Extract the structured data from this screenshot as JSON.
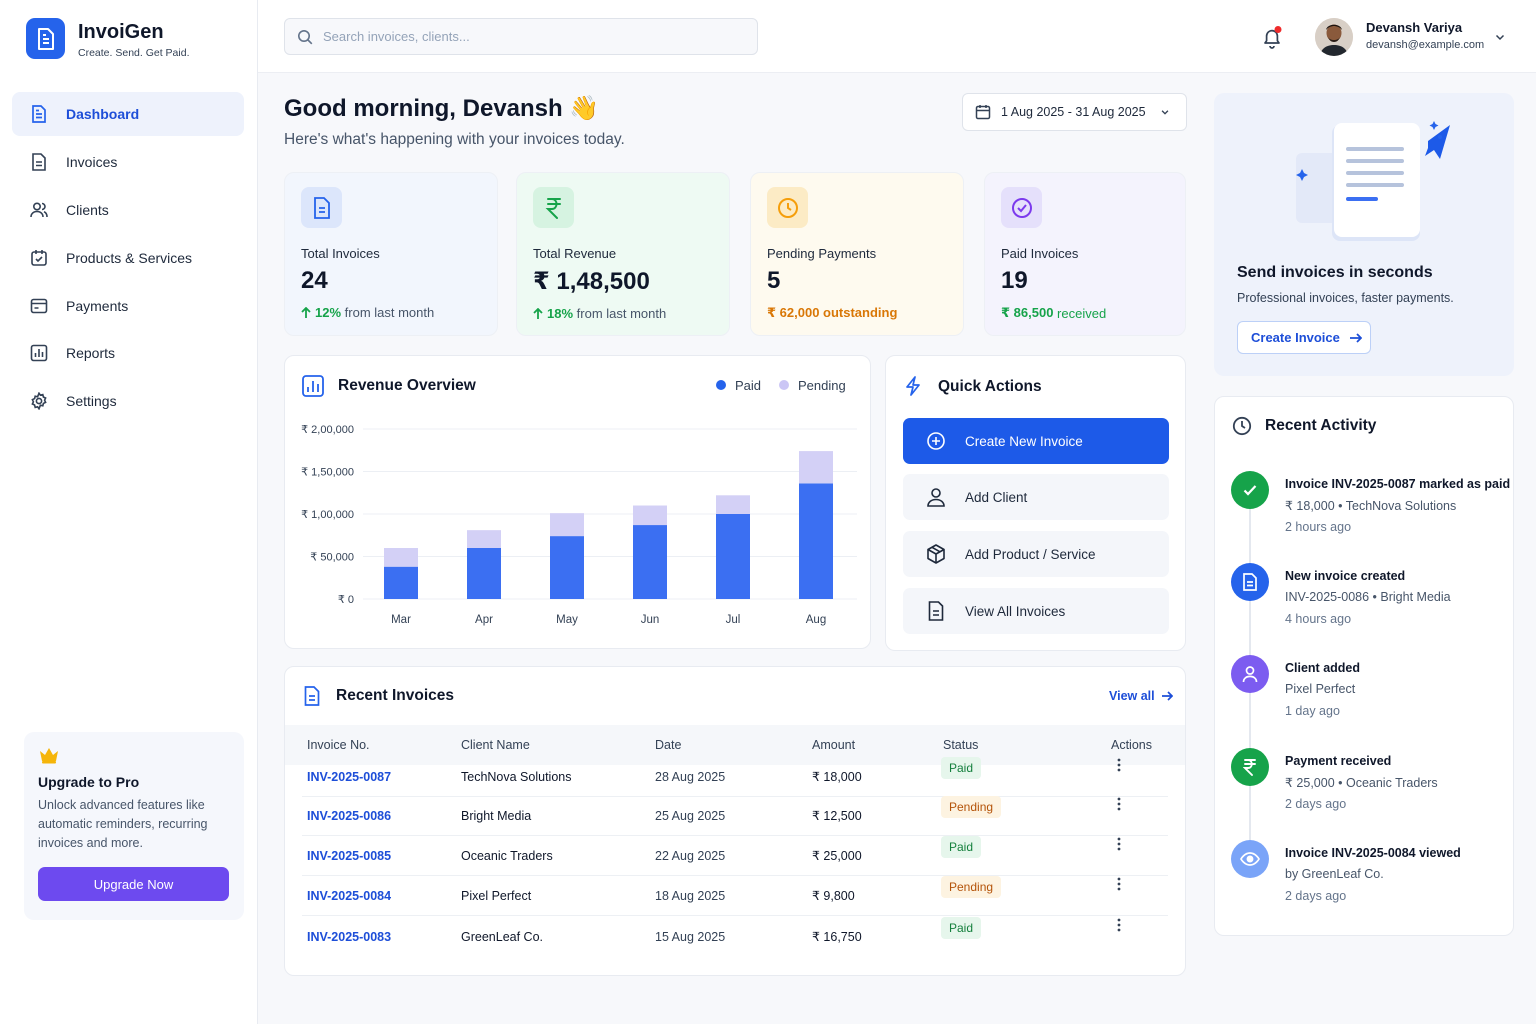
{
  "brand": {
    "name": "InvoiGen",
    "tagline": "Create. Send. Get Paid."
  },
  "nav": [
    {
      "label": "Dashboard",
      "icon": "dashboard-doc-icon",
      "active": true
    },
    {
      "label": "Invoices",
      "icon": "invoice-doc-icon"
    },
    {
      "label": "Clients",
      "icon": "users-icon"
    },
    {
      "label": "Products & Services",
      "icon": "box-check-icon"
    },
    {
      "label": "Payments",
      "icon": "wallet-icon"
    },
    {
      "label": "Reports",
      "icon": "bar-chart-icon"
    },
    {
      "label": "Settings",
      "icon": "gear-icon"
    }
  ],
  "upgrade": {
    "title": "Upgrade to Pro",
    "desc": "Unlock advanced features like automatic reminders, recurring invoices and more.",
    "button": "Upgrade Now"
  },
  "search": {
    "placeholder": "Search invoices, clients..."
  },
  "user": {
    "name": "Devansh Variya",
    "email": "devansh@example.com"
  },
  "greeting": {
    "title": "Good morning, Devansh 👋",
    "subtitle": "Here's what's happening with your invoices today."
  },
  "date_range": "1 Aug 2025 - 31 Aug 2025",
  "stats": [
    {
      "label": "Total Invoices",
      "value": "24",
      "foot_strong": "12%",
      "foot_rest": " from last month",
      "accent": "#2563eb",
      "bg": "#f2f6fd"
    },
    {
      "label": "Total Revenue",
      "value": "₹ 1,48,500",
      "foot_strong": "18%",
      "foot_rest": " from last month",
      "accent": "#16a34a",
      "bg": "#eefaf3"
    },
    {
      "label": "Pending Payments",
      "value": "5",
      "foot_strong": "₹ 62,000 outstanding",
      "foot_rest": "",
      "accent": "#f59e0b",
      "bg": "#fefaef"
    },
    {
      "label": "Paid Invoices",
      "value": "19",
      "foot_strong": "₹ 86,500",
      "foot_rest": " received",
      "accent": "#7c3aed",
      "bg": "#f4f3fd"
    }
  ],
  "revenue": {
    "title": "Revenue Overview",
    "legend": [
      "Paid",
      "Pending"
    ]
  },
  "chart_data": {
    "type": "bar",
    "stacked": true,
    "title": "Revenue Overview",
    "categories": [
      "Mar",
      "Apr",
      "May",
      "Jun",
      "Jul",
      "Aug"
    ],
    "series": [
      {
        "name": "Paid",
        "color": "#3b6ff2",
        "values": [
          38000,
          60000,
          74000,
          87000,
          100000,
          136000
        ]
      },
      {
        "name": "Pending",
        "color": "#d3d0f6",
        "values": [
          22000,
          21000,
          27000,
          23000,
          22000,
          38000
        ]
      }
    ],
    "ylim": [
      0,
      200000
    ],
    "yticks": [
      "₹ 0",
      "₹ 50,000",
      "₹ 1,00,000",
      "₹ 1,50,000",
      "₹ 2,00,000"
    ],
    "legend_position": "top-right",
    "grid": true
  },
  "quick_actions": {
    "title": "Quick Actions",
    "items": [
      "Create New Invoice",
      "Add Client",
      "Add Product / Service",
      "View All Invoices"
    ]
  },
  "invoices": {
    "title": "Recent Invoices",
    "view_all": "View all",
    "columns": [
      "Invoice No.",
      "Client Name",
      "Date",
      "Amount",
      "Status",
      "Actions"
    ],
    "rows": [
      {
        "no": "INV-2025-0087",
        "client": "TechNova Solutions",
        "date": "28 Aug 2025",
        "amount": "₹ 18,000",
        "status": "Paid"
      },
      {
        "no": "INV-2025-0086",
        "client": "Bright Media",
        "date": "25 Aug 2025",
        "amount": "₹ 12,500",
        "status": "Pending"
      },
      {
        "no": "INV-2025-0085",
        "client": "Oceanic Traders",
        "date": "22 Aug 2025",
        "amount": "₹ 25,000",
        "status": "Paid"
      },
      {
        "no": "INV-2025-0084",
        "client": "Pixel Perfect",
        "date": "18 Aug 2025",
        "amount": "₹ 9,800",
        "status": "Pending"
      },
      {
        "no": "INV-2025-0083",
        "client": "GreenLeaf Co.",
        "date": "15 Aug 2025",
        "amount": "₹ 16,750",
        "status": "Paid"
      }
    ]
  },
  "promo": {
    "title": "Send invoices in seconds",
    "desc": "Professional invoices, faster payments.",
    "button": "Create Invoice"
  },
  "activity": {
    "title": "Recent Activity",
    "items": [
      {
        "title": "Invoice INV-2025-0087 marked as paid",
        "detail": "₹ 18,000 • TechNova Solutions",
        "time": "2 hours ago",
        "color": "#16a34a",
        "icon": "check-icon"
      },
      {
        "title": "New invoice created",
        "detail": "INV-2025-0086 • Bright Media",
        "time": "4 hours ago",
        "color": "#2563eb",
        "icon": "invoice-doc-icon"
      },
      {
        "title": "Client added",
        "detail": "Pixel Perfect",
        "time": "1 day ago",
        "color": "#7c5cf0",
        "icon": "user-icon"
      },
      {
        "title": "Payment received",
        "detail": "₹ 25,000 • Oceanic Traders",
        "time": "2 days ago",
        "color": "#16a34a",
        "icon": "rupee-icon"
      },
      {
        "title": "Invoice INV-2025-0084 viewed",
        "detail": "by GreenLeaf Co.",
        "time": "2 days ago",
        "color": "#7aa4f8",
        "icon": "eye-icon"
      }
    ]
  }
}
